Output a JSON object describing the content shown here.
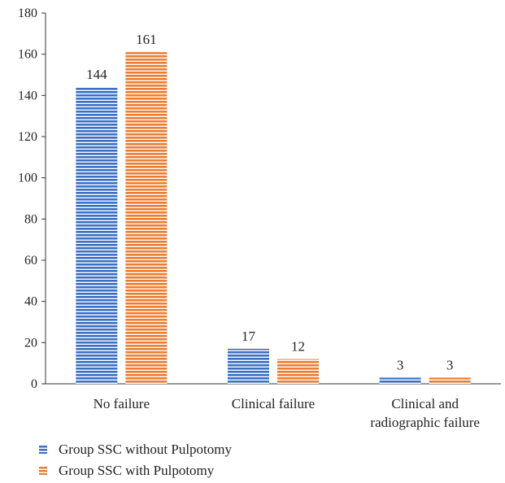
{
  "chart_data": {
    "type": "bar",
    "categories": [
      [
        "No failure"
      ],
      [
        "Clinical failure"
      ],
      [
        "Clinical and",
        "radiographic failure"
      ]
    ],
    "series": [
      {
        "name": "Group SSC without Pulpotomy",
        "values": [
          144,
          17,
          3
        ],
        "color": "#3a6fc4"
      },
      {
        "name": "Group SSC with Pulpotomy",
        "values": [
          161,
          12,
          3
        ],
        "color": "#ec7c30"
      }
    ],
    "y_ticks": [
      "0",
      "20",
      "40",
      "60",
      "80",
      "100",
      "120",
      "140",
      "160",
      "180"
    ],
    "ylim": [
      0,
      180
    ],
    "grid": false,
    "legend_position": "bottom-left",
    "bar_pattern": "horizontal-stripes"
  }
}
